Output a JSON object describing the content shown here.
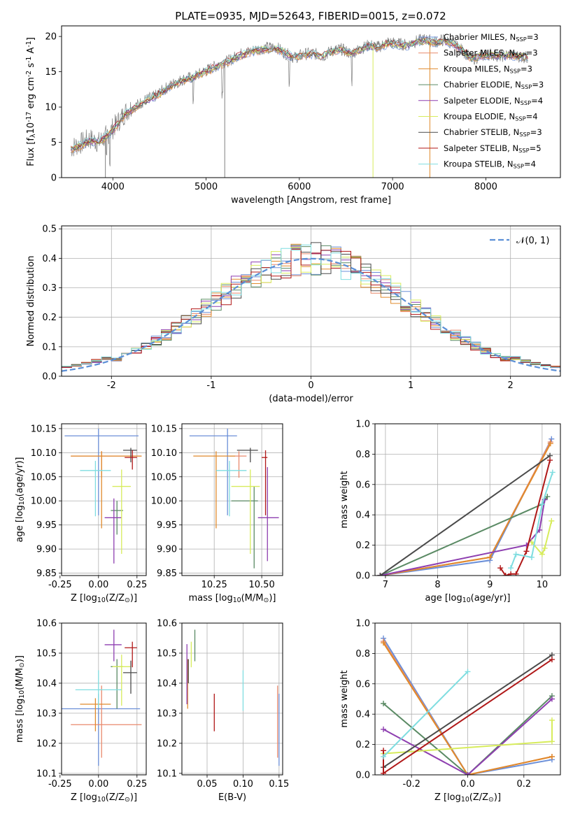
{
  "figure": {
    "title": "PLATE=0935, MJD=52643, FIBERID=0015, z=0.072"
  },
  "series_meta": [
    {
      "name": "Chabrier MILES, N$_{SSP}$=3",
      "color": "#6b8fd8"
    },
    {
      "name": "Salpeter MILES, N$_{SSP}$=3",
      "color": "#e8896c"
    },
    {
      "name": "Kroupa MILES, N$_{SSP}$=3",
      "color": "#e08a2c"
    },
    {
      "name": "Chabrier ELODIE, N$_{SSP}$=3",
      "color": "#5a8a64"
    },
    {
      "name": "Salpeter ELODIE, N$_{SSP}$=4",
      "color": "#8e3fb0"
    },
    {
      "name": "Kroupa ELODIE, N$_{SSP}$=4",
      "color": "#d7ec5c"
    },
    {
      "name": "Chabrier STELIB, N$_{SSP}$=3",
      "color": "#4a4a4a"
    },
    {
      "name": "Salpeter STELIB, N$_{SSP}$=5",
      "color": "#b01818"
    },
    {
      "name": "Kroupa STELIB, N$_{SSP}$=4",
      "color": "#7fdde0"
    }
  ],
  "chart_data": [
    {
      "id": "spectrum",
      "type": "line",
      "xlabel": "wavelength [Angstrom, rest frame]",
      "ylabel": "Flux [f$_\\lambda$10$^{-17}$ erg cm$^{-2}$ s$^{-1}$ A$^{-1}$]",
      "xlim": [
        3450,
        8800
      ],
      "ylim": [
        0,
        21.5
      ],
      "xticks": [
        4000,
        5000,
        6000,
        7000,
        8000
      ],
      "yticks": [
        0,
        5,
        10,
        15,
        20
      ],
      "legend": "upper right",
      "x_range": [
        3550,
        8450
      ],
      "data_color": "#808080",
      "data_y": [
        4.2,
        4.8,
        5.5,
        5.0,
        6.2,
        7.8,
        9.5,
        10.2,
        11.0,
        11.5,
        12.5,
        13.3,
        13.9,
        14.2,
        14.8,
        15.5,
        16.0,
        16.6,
        17.4,
        17.8,
        18.2,
        18.4,
        18.5,
        17.6,
        17.0,
        17.5,
        17.6,
        17.2,
        18.0,
        18.2,
        17.6,
        18.2,
        18.8,
        18.5,
        19.2,
        19.0,
        18.8,
        19.3,
        19.6,
        19.2,
        19.5,
        19.0,
        18.0,
        16.8,
        17.2,
        17.5,
        17.2,
        17.4,
        17.2,
        17.0
      ],
      "model_y": [
        4.0,
        4.5,
        5.2,
        5.0,
        6.0,
        7.5,
        9.2,
        10.0,
        10.8,
        11.4,
        12.3,
        13.1,
        13.8,
        14.1,
        14.7,
        15.3,
        15.9,
        16.5,
        17.2,
        17.7,
        18.0,
        18.2,
        18.3,
        17.6,
        17.0,
        17.4,
        17.5,
        17.2,
        17.9,
        18.1,
        17.6,
        18.1,
        18.6,
        18.4,
        19.0,
        18.9,
        18.7,
        19.1,
        19.4,
        19.1,
        19.3,
        18.9,
        18.0,
        16.9,
        17.2,
        17.4,
        17.2,
        17.3,
        17.2,
        17.0
      ],
      "absorption_lines": [
        3934,
        3969,
        4861,
        5175,
        5893,
        6563
      ],
      "series_labels": [
        "Chabrier MILES, N$_{SSP}$=3",
        "Salpeter MILES, N$_{SSP}$=3",
        "Kroupa MILES, N$_{SSP}$=3",
        "Chabrier ELODIE, N$_{SSP}$=3",
        "Salpeter ELODIE, N$_{SSP}$=4",
        "Kroupa ELODIE, N$_{SSP}$=4",
        "Chabrier STELIB, N$_{SSP}$=3",
        "Salpeter STELIB, N$_{SSP}$=5",
        "Kroupa STELIB, N$_{SSP}$=4"
      ]
    },
    {
      "id": "residuals",
      "type": "line",
      "xlabel": "(data-model)/error",
      "ylabel": "Normed distribution",
      "xlim": [
        -2.5,
        2.5
      ],
      "ylim": [
        0,
        0.51
      ],
      "xticks": [
        -2,
        -1,
        0,
        1,
        2
      ],
      "yticks": [
        0.0,
        0.1,
        0.2,
        0.3,
        0.4,
        0.5
      ],
      "legend_label": "$\\mathcal{N}(0, 1)$",
      "bin_width": 0.1,
      "gaussian": {
        "mean": 0,
        "sigma": 1
      }
    },
    {
      "id": "age_vs_Z",
      "type": "scatter",
      "xlabel": "Z [log$_{10}$(Z/Z$_\\odot$)]",
      "ylabel": "age  [log$_{10}$(age/yr)]",
      "xlim": [
        -0.24,
        0.31
      ],
      "ylim": [
        9.845,
        10.16
      ],
      "xticks": [
        -0.25,
        0.0,
        0.25
      ],
      "yticks": [
        9.85,
        9.9,
        9.95,
        10.0,
        10.05,
        10.1,
        10.15
      ],
      "points": [
        {
          "x": 0.0,
          "y": 10.135,
          "xerr": [
            0.22,
            0.26
          ],
          "yerr": [
            0.165,
            0.015
          ]
        },
        {
          "x": 0.02,
          "y": 10.093,
          "xerr": [
            0.2,
            0.26
          ],
          "yerr": [
            0.045,
            0.01
          ]
        },
        {
          "x": 0.02,
          "y": 10.093,
          "xerr": [
            0.2,
            0.26
          ],
          "yerr": [
            0.15,
            0.01
          ]
        },
        {
          "x": 0.12,
          "y": 9.98,
          "xerr": [
            0.04,
            0.04
          ],
          "yerr": [
            0.05,
            0.02
          ]
        },
        {
          "x": 0.1,
          "y": 9.965,
          "xerr": [
            0.06,
            0.05
          ],
          "yerr": [
            0.095,
            0.04
          ]
        },
        {
          "x": 0.15,
          "y": 10.03,
          "xerr": [
            0.06,
            0.06
          ],
          "yerr": [
            0.14,
            0.035
          ]
        },
        {
          "x": 0.21,
          "y": 10.105,
          "xerr": [
            0.05,
            0.04
          ],
          "yerr": [
            0.025,
            0.005
          ]
        },
        {
          "x": 0.22,
          "y": 10.09,
          "xerr": [
            0.05,
            0.03
          ],
          "yerr": [
            0.025,
            0.015
          ]
        },
        {
          "x": -0.02,
          "y": 10.063,
          "xerr": [
            0.1,
            0.1
          ],
          "yerr": [
            0.095,
            0.02
          ]
        }
      ]
    },
    {
      "id": "age_vs_mass",
      "type": "scatter",
      "xlabel": "mass [log$_{10}$(M/M$_\\odot$)]",
      "ylabel": "",
      "xlim": [
        10.08,
        10.61
      ],
      "ylim": [
        9.845,
        10.16
      ],
      "xticks": [
        10.25,
        10.5
      ],
      "yticks": [
        9.85,
        9.9,
        9.95,
        10.0,
        10.05,
        10.1,
        10.15
      ],
      "points": [
        {
          "x": 10.32,
          "y": 10.135,
          "xerr": [
            0.2,
            0.05
          ],
          "yerr": [
            0.165,
            0.015
          ]
        },
        {
          "x": 10.38,
          "y": 10.093,
          "xerr": [
            0.05,
            0.04
          ],
          "yerr": [
            0.045,
            0.01
          ]
        },
        {
          "x": 10.26,
          "y": 10.093,
          "xerr": [
            0.12,
            0.1
          ],
          "yerr": [
            0.15,
            0.01
          ]
        },
        {
          "x": 10.46,
          "y": 10.0,
          "xerr": [
            0.12,
            0.02
          ],
          "yerr": [
            0.14,
            0.03
          ]
        },
        {
          "x": 10.53,
          "y": 9.965,
          "xerr": [
            0.05,
            0.06
          ],
          "yerr": [
            0.09,
            0.105
          ]
        },
        {
          "x": 10.44,
          "y": 10.03,
          "xerr": [
            0.1,
            0.05
          ],
          "yerr": [
            0.14,
            0.035
          ]
        },
        {
          "x": 10.44,
          "y": 10.105,
          "xerr": [
            0.07,
            0.04
          ],
          "yerr": [
            0.025,
            0.005
          ]
        },
        {
          "x": 10.52,
          "y": 10.09,
          "xerr": [
            0.02,
            0.01
          ],
          "yerr": [
            0.12,
            0.015
          ]
        },
        {
          "x": 10.33,
          "y": 10.063,
          "xerr": [
            0.07,
            0.09
          ],
          "yerr": [
            0.095,
            0.02
          ]
        }
      ]
    },
    {
      "id": "massweight_vs_age",
      "type": "line",
      "xlabel": "age  [log$_{10}$(age/yr)]",
      "ylabel": "mass weight",
      "xlim": [
        6.8,
        10.35
      ],
      "ylim": [
        0,
        1.0
      ],
      "xticks": [
        7,
        8,
        9,
        10
      ],
      "yticks": [
        0.0,
        0.2,
        0.4,
        0.6,
        0.8,
        1.0
      ],
      "series": [
        {
          "name": "Chabrier MILES",
          "x": [
            6.9,
            9.0,
            10.18
          ],
          "y": [
            0.0,
            0.1,
            0.9
          ]
        },
        {
          "name": "Salpeter MILES",
          "x": [
            6.9,
            9.0,
            10.16
          ],
          "y": [
            0.0,
            0.12,
            0.88
          ]
        },
        {
          "name": "Kroupa MILES",
          "x": [
            6.9,
            9.0,
            10.16
          ],
          "y": [
            0.0,
            0.12,
            0.87
          ]
        },
        {
          "name": "Chabrier ELODIE",
          "x": [
            6.9,
            10.0,
            10.1
          ],
          "y": [
            0.0,
            0.47,
            0.52
          ]
        },
        {
          "name": "Salpeter ELODIE",
          "x": [
            6.9,
            9.7,
            9.95,
            10.05
          ],
          "y": [
            0.0,
            0.2,
            0.3,
            0.5
          ]
        },
        {
          "name": "Kroupa ELODIE",
          "x": [
            9.8,
            10.0,
            10.05,
            10.18
          ],
          "y": [
            0.22,
            0.14,
            0.18,
            0.36
          ]
        },
        {
          "name": "Chabrier STELIB",
          "x": [
            6.9,
            10.15
          ],
          "y": [
            0.0,
            0.79
          ]
        },
        {
          "name": "Salpeter STELIB",
          "x": [
            9.2,
            9.3,
            9.4,
            9.5,
            9.7,
            10.15
          ],
          "y": [
            0.05,
            0.0,
            0.01,
            0.01,
            0.16,
            0.76
          ]
        },
        {
          "name": "Kroupa STELIB",
          "x": [
            9.4,
            9.5,
            9.8,
            10.0,
            10.2
          ],
          "y": [
            0.05,
            0.14,
            0.12,
            0.47,
            0.68
          ]
        }
      ]
    },
    {
      "id": "mass_vs_Z",
      "type": "scatter",
      "xlabel": "Z [log$_{10}$(Z/Z$_\\odot$)]",
      "ylabel": "mass [log$_{10}$(M/M$_\\odot$)]",
      "xlim": [
        -0.24,
        0.31
      ],
      "ylim": [
        10.095,
        10.6
      ],
      "xticks": [
        -0.25,
        0.0,
        0.25
      ],
      "yticks": [
        10.1,
        10.2,
        10.3,
        10.4,
        10.5,
        10.6
      ],
      "points": [
        {
          "x": 0.0,
          "y": 10.315,
          "xerr": [
            0.24,
            0.27
          ],
          "yerr": [
            0.19,
            0.05
          ]
        },
        {
          "x": 0.02,
          "y": 10.262,
          "xerr": [
            0.2,
            0.26
          ],
          "yerr": [
            0.11,
            0.13
          ]
        },
        {
          "x": -0.02,
          "y": 10.33,
          "xerr": [
            0.1,
            0.1
          ],
          "yerr": [
            0.09,
            0.02
          ]
        },
        {
          "x": 0.12,
          "y": 10.455,
          "xerr": [
            0.04,
            0.04
          ],
          "yerr": [
            0.14,
            0.025
          ]
        },
        {
          "x": 0.1,
          "y": 10.528,
          "xerr": [
            0.06,
            0.05
          ],
          "yerr": [
            0.055,
            0.05
          ]
        },
        {
          "x": 0.15,
          "y": 10.455,
          "xerr": [
            0.06,
            0.06
          ],
          "yerr": [
            0.13,
            0.04
          ]
        },
        {
          "x": 0.21,
          "y": 10.435,
          "xerr": [
            0.05,
            0.04
          ],
          "yerr": [
            0.07,
            0.04
          ]
        },
        {
          "x": 0.22,
          "y": 10.518,
          "xerr": [
            0.05,
            0.03
          ],
          "yerr": [
            0.065,
            0.02
          ]
        },
        {
          "x": 0.0,
          "y": 10.378,
          "xerr": [
            0.15,
            0.15
          ],
          "yerr": [
            0.06,
            0.065
          ]
        }
      ]
    },
    {
      "id": "mass_vs_EBV",
      "type": "scatter",
      "xlabel": "E(B-V)",
      "ylabel": "",
      "xlim": [
        0.015,
        0.155
      ],
      "ylim": [
        10.095,
        10.6
      ],
      "xticks": [
        0.05,
        0.1,
        0.15
      ],
      "yticks": [
        10.1,
        10.2,
        10.3,
        10.4,
        10.5,
        10.6
      ],
      "points": [
        {
          "x": 0.15,
          "y": 10.315,
          "yerr": [
            0.19,
            0.05
          ]
        },
        {
          "x": 0.148,
          "y": 10.262,
          "yerr": [
            0.11,
            0.13
          ]
        },
        {
          "x": 0.023,
          "y": 10.455,
          "yerr": [
            0.14,
            0.025
          ]
        },
        {
          "x": 0.033,
          "y": 10.528,
          "yerr": [
            0.055,
            0.05
          ]
        },
        {
          "x": 0.022,
          "y": 10.43,
          "yerr": [
            0.1,
            0.1
          ]
        },
        {
          "x": 0.028,
          "y": 10.518,
          "yerr": [
            0.065,
            0.02
          ]
        },
        {
          "x": 0.024,
          "y": 10.45,
          "yerr": [
            0.05,
            0.03
          ]
        },
        {
          "x": 0.06,
          "y": 10.3,
          "yerr": [
            0.06,
            0.065
          ]
        },
        {
          "x": 0.1,
          "y": 10.378,
          "yerr": [
            0.07,
            0.065
          ]
        }
      ]
    },
    {
      "id": "massweight_vs_Z",
      "type": "line",
      "xlabel": "Z [log$_{10}$(Z/Z$_\\odot$)]",
      "ylabel": "mass weight",
      "xlim": [
        -0.33,
        0.33
      ],
      "ylim": [
        0,
        1.0
      ],
      "xticks": [
        -0.2,
        0.0,
        0.2
      ],
      "yticks": [
        0.0,
        0.2,
        0.4,
        0.6,
        0.8,
        1.0
      ],
      "series": [
        {
          "name": "Chabrier MILES",
          "x": [
            -0.3,
            0.0,
            0.3
          ],
          "y": [
            0.9,
            0.0,
            0.1
          ]
        },
        {
          "name": "Salpeter MILES",
          "x": [
            -0.3,
            0.0,
            0.3
          ],
          "y": [
            0.88,
            0.0,
            0.12
          ]
        },
        {
          "name": "Kroupa MILES",
          "x": [
            -0.3,
            0.0,
            0.3
          ],
          "y": [
            0.87,
            0.0,
            0.12
          ]
        },
        {
          "name": "Chabrier ELODIE",
          "x": [
            -0.3,
            0.0,
            0.3
          ],
          "y": [
            0.47,
            0.0,
            0.52
          ]
        },
        {
          "name": "Salpeter ELODIE",
          "x": [
            -0.3,
            0.0,
            0.3
          ],
          "y": [
            0.3,
            0.0,
            0.5
          ]
        },
        {
          "name": "Kroupa ELODIE",
          "x": [
            -0.3,
            0.3,
            0.3
          ],
          "y": [
            0.14,
            0.22,
            0.36
          ]
        },
        {
          "name": "Chabrier STELIB",
          "x": [
            -0.3,
            0.3
          ],
          "y": [
            0.05,
            0.79
          ]
        },
        {
          "name": "Salpeter STELIB",
          "x": [
            -0.3,
            -0.3,
            0.3
          ],
          "y": [
            0.16,
            0.01,
            0.76
          ]
        },
        {
          "name": "Kroupa STELIB",
          "x": [
            -0.3,
            0.0
          ],
          "y": [
            0.12,
            0.68
          ]
        }
      ]
    }
  ]
}
